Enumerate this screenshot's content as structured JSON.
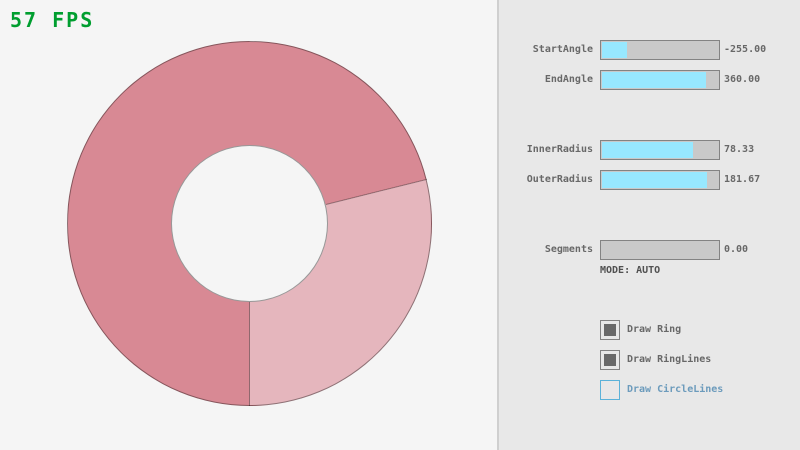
{
  "fps": {
    "label": "57 FPS",
    "color": "#009E2F"
  },
  "ring": {
    "color_single_pass": "#E5B6BD",
    "color_double_pass": "#D88994",
    "outline_color": "rgba(0,0,0,0.38)",
    "start_angle": -255.0,
    "end_angle": 360.0,
    "inner_radius": 78.33,
    "outer_radius": 181.67
  },
  "controls": {
    "sliders": [
      {
        "label": "StartAngle",
        "value": "-255.00",
        "fraction": 0.217
      },
      {
        "label": "EndAngle",
        "value": "360.00",
        "fraction": 0.9
      },
      {
        "label": "InnerRadius",
        "value": "78.33",
        "fraction": 0.783
      },
      {
        "label": "OuterRadius",
        "value": "181.67",
        "fraction": 0.908
      },
      {
        "label": "Segments",
        "value": "0.00",
        "fraction": 0.0
      }
    ],
    "mode_text": "MODE: AUTO",
    "checkboxes": [
      {
        "label": "Draw Ring",
        "checked": true,
        "focused": false
      },
      {
        "label": "Draw RingLines",
        "checked": true,
        "focused": false
      },
      {
        "label": "Draw CircleLines",
        "checked": false,
        "focused": true
      }
    ],
    "colors": {
      "slider_fill": "#97E8FF",
      "slider_base": "#C9C9C9",
      "border_normal": "#838383",
      "text_normal": "#686868",
      "border_focused": "#5BB2D9",
      "text_focused": "#6C9BBC",
      "mode_text": "#505050",
      "panel_bg": "#E8E8E8",
      "canvas_bg": "#F5F5F5"
    }
  }
}
